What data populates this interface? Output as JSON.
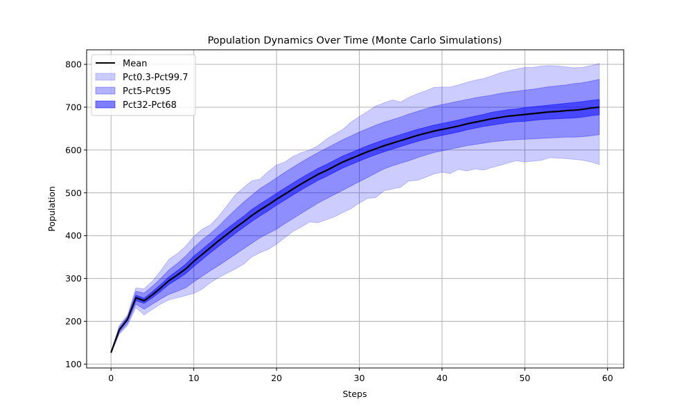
{
  "chart_data": {
    "type": "area",
    "title": "Population Dynamics Over Time (Monte Carlo Simulations)",
    "xlabel": "Steps",
    "ylabel": "Population",
    "xlim": [
      -2.95,
      61.95
    ],
    "ylim": [
      91,
      834
    ],
    "xticks": [
      0,
      10,
      20,
      30,
      40,
      50,
      60
    ],
    "yticks": [
      100,
      200,
      300,
      400,
      500,
      600,
      700,
      800
    ],
    "grid": true,
    "legend_position": "upper-left",
    "colors": {
      "mean": "#000000",
      "band_fill": "#0000ff",
      "grid": "#b0b0b0"
    },
    "x": [
      0,
      1,
      2,
      3,
      4,
      5,
      6,
      7,
      8,
      9,
      10,
      11,
      12,
      13,
      14,
      15,
      16,
      17,
      18,
      19,
      20,
      21,
      22,
      23,
      24,
      25,
      26,
      27,
      28,
      29,
      30,
      31,
      32,
      33,
      34,
      35,
      36,
      37,
      38,
      39,
      40,
      41,
      42,
      43,
      44,
      45,
      46,
      47,
      48,
      49,
      50,
      51,
      52,
      53,
      54,
      55,
      56,
      57,
      58,
      59
    ],
    "mean": {
      "name": "Mean",
      "values": [
        127,
        180,
        205,
        255,
        248,
        262,
        278,
        295,
        308,
        322,
        340,
        356,
        372,
        388,
        403,
        418,
        432,
        447,
        460,
        472,
        485,
        497,
        509,
        521,
        532,
        543,
        552,
        562,
        572,
        580,
        588,
        596,
        603,
        610,
        616,
        622,
        628,
        634,
        639,
        644,
        648,
        652,
        656,
        661,
        665,
        669,
        673,
        676,
        679,
        681,
        683,
        685,
        687,
        689,
        690,
        692,
        693,
        695,
        698,
        700
      ]
    },
    "bands": [
      {
        "name": "Pct0.3-Pct99.7",
        "opacity": 0.2,
        "lower": [
          125,
          170,
          190,
          232,
          215,
          228,
          240,
          250,
          255,
          260,
          265,
          275,
          290,
          302,
          312,
          322,
          333,
          350,
          360,
          368,
          380,
          395,
          410,
          420,
          432,
          430,
          437,
          444,
          454,
          463,
          476,
          487,
          489,
          505,
          509,
          513,
          528,
          529,
          536,
          544,
          548,
          545,
          555,
          551,
          556,
          553,
          559,
          564,
          570,
          575,
          572,
          574,
          576,
          582,
          581,
          580,
          578,
          576,
          572,
          566
        ],
        "upper": [
          130,
          190,
          215,
          278,
          276,
          294,
          318,
          345,
          358,
          375,
          398,
          415,
          425,
          445,
          470,
          495,
          512,
          528,
          532,
          550,
          565,
          572,
          585,
          594,
          600,
          610,
          625,
          637,
          648,
          665,
          678,
          690,
          703,
          710,
          717,
          712,
          723,
          731,
          738,
          746,
          747,
          747,
          752,
          758,
          763,
          767,
          773,
          780,
          785,
          789,
          793,
          793,
          796,
          797,
          796,
          794,
          792,
          793,
          797,
          802
        ]
      },
      {
        "name": "Pct5-Pct95",
        "opacity": 0.3,
        "lower": [
          126,
          173,
          195,
          240,
          228,
          240,
          252,
          263,
          270,
          278,
          292,
          305,
          318,
          330,
          343,
          356,
          369,
          382,
          395,
          405,
          415,
          428,
          440,
          452,
          464,
          476,
          486,
          496,
          506,
          516,
          526,
          536,
          546,
          556,
          563,
          569,
          575,
          582,
          588,
          594,
          598,
          602,
          606,
          610,
          613,
          616,
          619,
          621,
          623,
          624,
          625,
          626,
          627,
          628,
          629,
          630,
          630,
          631,
          633,
          636
        ]
      },
      {
        "name": "Pct32-Pct68",
        "opacity": 0.5,
        "lower": [
          127,
          178,
          202,
          248,
          242,
          255,
          270,
          286,
          298,
          311,
          328,
          344,
          360,
          375,
          390,
          405,
          419,
          433,
          446,
          458,
          471,
          483,
          495,
          507,
          518,
          529,
          538,
          548,
          558,
          566,
          574,
          582,
          589,
          596,
          602,
          608,
          614,
          620,
          625,
          630,
          634,
          638,
          642,
          647,
          651,
          655,
          658,
          661,
          664,
          666,
          667,
          669,
          671,
          672,
          673,
          674,
          675,
          677,
          680,
          682
        ],
        "upper": [
          128,
          182,
          208,
          261,
          254,
          269,
          286,
          304,
          318,
          333,
          352,
          368,
          384,
          401,
          416,
          431,
          445,
          461,
          474,
          486,
          499,
          511,
          523,
          535,
          546,
          557,
          566,
          576,
          586,
          594,
          602,
          610,
          617,
          624,
          630,
          636,
          642,
          648,
          653,
          658,
          662,
          666,
          670,
          675,
          679,
          683,
          688,
          691,
          694,
          696,
          699,
          701,
          703,
          705,
          707,
          709,
          711,
          713,
          716,
          718
        ]
      }
    ],
    "band95_upper": [
      129,
      187,
      212,
      270,
      266,
      282,
      300,
      320,
      335,
      352,
      372,
      390,
      405,
      422,
      442,
      460,
      478,
      494,
      510,
      522,
      535,
      548,
      560,
      572,
      583,
      594,
      604,
      614,
      624,
      633,
      642,
      650,
      658,
      665,
      671,
      677,
      684,
      690,
      696,
      702,
      706,
      710,
      714,
      718,
      722,
      725,
      728,
      732,
      735,
      737,
      740,
      742,
      745,
      748,
      750,
      752,
      755,
      757,
      761,
      765
    ]
  }
}
